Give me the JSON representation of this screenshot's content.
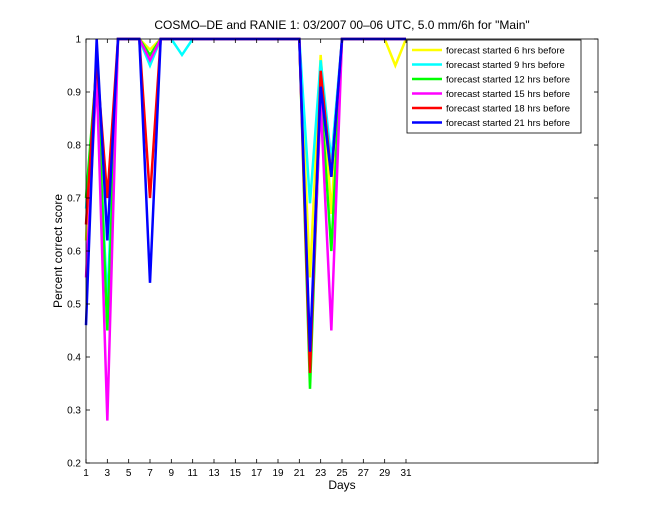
{
  "chart_data": {
    "type": "line",
    "title": "COSMO–DE and RANIE 1: 03/2007 00–06 UTC, 5.0 mm/6h for \"Main\"",
    "xlabel": "Days",
    "ylabel": "Percent correct score",
    "xlim": [
      1,
      49
    ],
    "ylim": [
      0.2,
      1
    ],
    "x_ticks": [
      1,
      3,
      5,
      7,
      9,
      11,
      13,
      15,
      17,
      19,
      21,
      23,
      25,
      27,
      29,
      31
    ],
    "y_ticks": [
      0.2,
      0.3,
      0.4,
      0.5,
      0.6,
      0.7,
      0.8,
      0.9,
      1
    ],
    "y_tick_labels": [
      "0.2",
      "0.3",
      "0.4",
      "0.5",
      "0.6",
      "0.7",
      "0.8",
      "0.9",
      "1"
    ],
    "legend_position": "top-right",
    "grid": false,
    "x": [
      1,
      2,
      3,
      4,
      5,
      6,
      7,
      8,
      9,
      10,
      11,
      12,
      13,
      14,
      15,
      16,
      17,
      18,
      19,
      20,
      21,
      22,
      23,
      24,
      25,
      26,
      27,
      28,
      29,
      30,
      31
    ],
    "series": [
      {
        "name": "forecast started 6 hrs before",
        "color": "#ffff00",
        "values": [
          0.62,
          0.97,
          0.48,
          1,
          1,
          1,
          0.98,
          1,
          1,
          1,
          1,
          1,
          1,
          1,
          1,
          1,
          1,
          1,
          1,
          1,
          1,
          0.55,
          0.97,
          0.67,
          1,
          1,
          1,
          1,
          1,
          0.95,
          1
        ]
      },
      {
        "name": "forecast started 9 hrs before",
        "color": "#00ffff",
        "values": [
          0.68,
          0.92,
          0.5,
          1,
          1,
          1,
          0.95,
          1,
          1,
          0.97,
          1,
          1,
          1,
          1,
          1,
          1,
          1,
          1,
          1,
          1,
          1,
          0.69,
          0.96,
          0.77,
          1,
          1,
          1,
          1,
          1,
          1,
          1
        ]
      },
      {
        "name": "forecast started 12 hrs before",
        "color": "#00ff00",
        "values": [
          0.7,
          0.95,
          0.45,
          1,
          1,
          1,
          0.97,
          1,
          1,
          1,
          1,
          1,
          1,
          1,
          1,
          1,
          1,
          1,
          1,
          1,
          1,
          0.34,
          0.9,
          0.6,
          1,
          1,
          1,
          1,
          1,
          1,
          1
        ]
      },
      {
        "name": "forecast started 15 hrs before",
        "color": "#ff00ff",
        "values": [
          0.55,
          0.93,
          0.28,
          1,
          1,
          1,
          0.96,
          1,
          1,
          1,
          1,
          1,
          1,
          1,
          1,
          1,
          1,
          1,
          1,
          1,
          1,
          0.39,
          0.88,
          0.45,
          1,
          1,
          1,
          1,
          1,
          1,
          1
        ]
      },
      {
        "name": "forecast started 18 hrs before",
        "color": "#ff0000",
        "values": [
          0.65,
          0.96,
          0.7,
          1,
          1,
          1,
          0.7,
          1,
          1,
          1,
          1,
          1,
          1,
          1,
          1,
          1,
          1,
          1,
          1,
          1,
          1,
          0.37,
          0.94,
          0.74,
          1,
          1,
          1,
          1,
          1,
          1,
          1
        ]
      },
      {
        "name": "forecast started 21 hrs before",
        "color": "#0000ff",
        "values": [
          0.46,
          1,
          0.62,
          1,
          1,
          1,
          0.54,
          1,
          1,
          1,
          1,
          1,
          1,
          1,
          1,
          1,
          1,
          1,
          1,
          1,
          1,
          0.41,
          0.91,
          0.74,
          1,
          1,
          1,
          1,
          1,
          1,
          1
        ]
      }
    ]
  }
}
